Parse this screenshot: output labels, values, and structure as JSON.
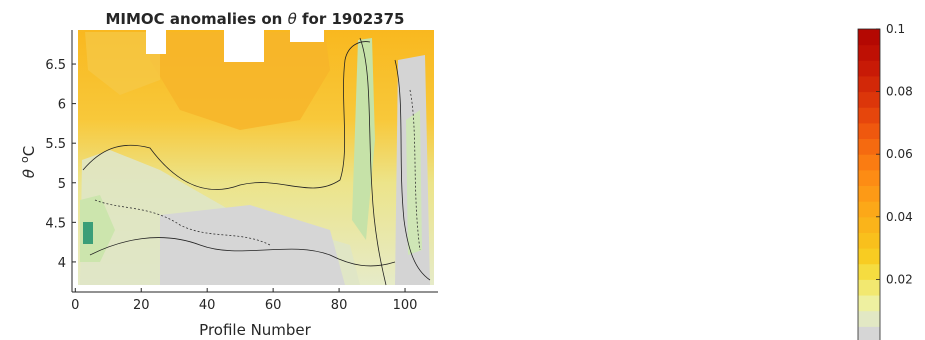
{
  "chart_data": {
    "type": "heatmap",
    "title_prefix": "MIMOC anomalies on ",
    "title_symbol": "θ",
    "title_suffix": "  for 1902375",
    "xlabel": "Profile Number",
    "ylabel_symbol": "θ",
    "ylabel_sup": "o",
    "ylabel_unit": "C",
    "xlim": [
      -1,
      110
    ],
    "ylim": [
      3.62,
      6.93
    ],
    "xticks": [
      "0",
      "20",
      "40",
      "60",
      "80",
      "100"
    ],
    "xtick_values": [
      0,
      20,
      40,
      60,
      80,
      100
    ],
    "yticks": [
      "4",
      "4.5",
      "5",
      "5.5",
      "6",
      "6.5"
    ],
    "ytick_values": [
      4,
      4.5,
      5,
      5.5,
      6,
      6.5
    ],
    "colorbar": {
      "range": [
        0,
        0.1
      ],
      "ticks": [
        "0.02",
        "0.04",
        "0.06",
        "0.08",
        "0.1"
      ],
      "tick_values": [
        0.02,
        0.04,
        0.06,
        0.08,
        0.1
      ],
      "colors": [
        "#d6d6d6",
        "#e2e8c4",
        "#eef0a0",
        "#f2e870",
        "#f5dc40",
        "#f8cc22",
        "#f9c01c",
        "#fab41a",
        "#fca818",
        "#fd9a16",
        "#fd8c14",
        "#fa7c12",
        "#f56a10",
        "#ef580e",
        "#e6460c",
        "#dc360a",
        "#d22808",
        "#c81a06",
        "#be1004",
        "#b40802"
      ]
    },
    "grid": false,
    "colors": {
      "cold_anomaly": "#c6e2a8",
      "strong_cold_anomaly": "#3a9e78",
      "warm_anomaly": "#f7b52a",
      "zero": "#d7d7d7"
    }
  }
}
